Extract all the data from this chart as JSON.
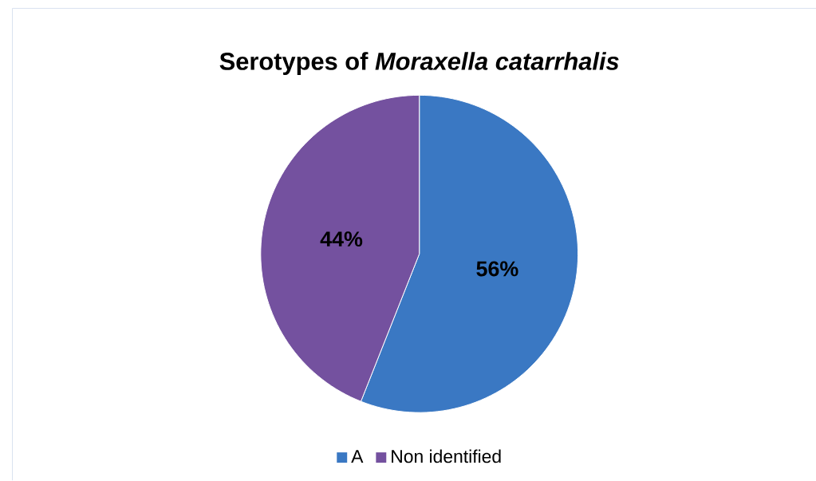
{
  "chart_data": {
    "type": "pie",
    "title": "Serotypes of *Moraxella catarrhalis*",
    "categories": [
      "A",
      "Non identified"
    ],
    "values": [
      56,
      44
    ],
    "colors": [
      "#3a78c3",
      "#74519f"
    ],
    "value_labels": [
      "56%",
      "44%"
    ],
    "legend": "bottom"
  }
}
